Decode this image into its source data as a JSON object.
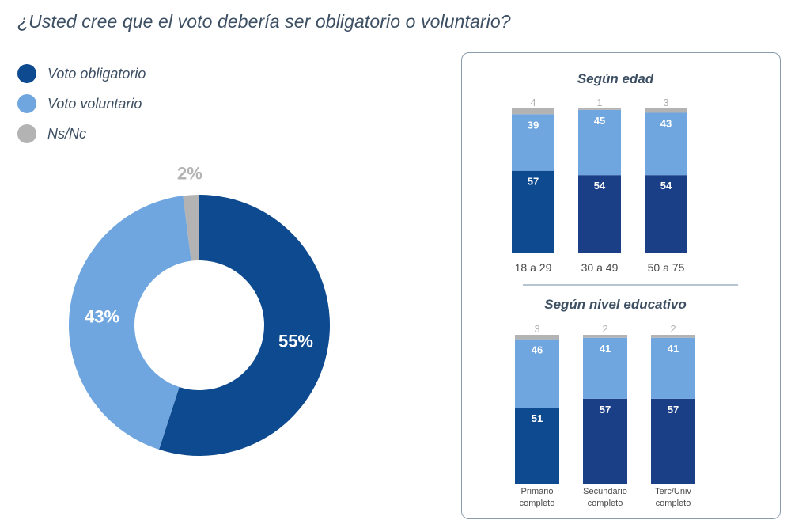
{
  "question": "¿Usted cree que el voto debería ser obligatorio o voluntario?",
  "colors": {
    "obligatorio": "#0d4a8f",
    "obligatorio_dark": "#1b3f87",
    "voluntario": "#6fa6df",
    "nsnc": "#b3b3b3"
  },
  "legend": [
    {
      "label": "Voto obligatorio",
      "color": "#0d4a8f"
    },
    {
      "label": "Voto voluntario",
      "color": "#6fa6df"
    },
    {
      "label": "Ns/Nc",
      "color": "#b3b3b3"
    }
  ],
  "chart_data": [
    {
      "type": "pie",
      "variant": "donut",
      "slices": [
        {
          "name": "Voto obligatorio",
          "value": 55,
          "label": "55%"
        },
        {
          "name": "Voto voluntario",
          "value": 43,
          "label": "43%"
        },
        {
          "name": "Ns/Nc",
          "value": 2,
          "label": "2%"
        }
      ]
    },
    {
      "type": "bar",
      "stacked": true,
      "title": "Según edad",
      "categories": [
        "18 a 29",
        "30 a 49",
        "50 a 75"
      ],
      "series": [
        {
          "name": "Voto obligatorio",
          "values": [
            57,
            54,
            54
          ]
        },
        {
          "name": "Voto voluntario",
          "values": [
            39,
            45,
            43
          ]
        },
        {
          "name": "Ns/Nc",
          "values": [
            4,
            1,
            3
          ]
        }
      ]
    },
    {
      "type": "bar",
      "stacked": true,
      "title": "Según nivel educativo",
      "categories": [
        [
          "Primario",
          "completo"
        ],
        [
          "Secundario",
          "completo"
        ],
        [
          "Terc/Univ",
          "completo"
        ]
      ],
      "series": [
        {
          "name": "Voto obligatorio",
          "values": [
            51,
            57,
            57
          ]
        },
        {
          "name": "Voto voluntario",
          "values": [
            46,
            41,
            41
          ]
        },
        {
          "name": "Ns/Nc",
          "values": [
            3,
            2,
            2
          ]
        }
      ]
    }
  ]
}
